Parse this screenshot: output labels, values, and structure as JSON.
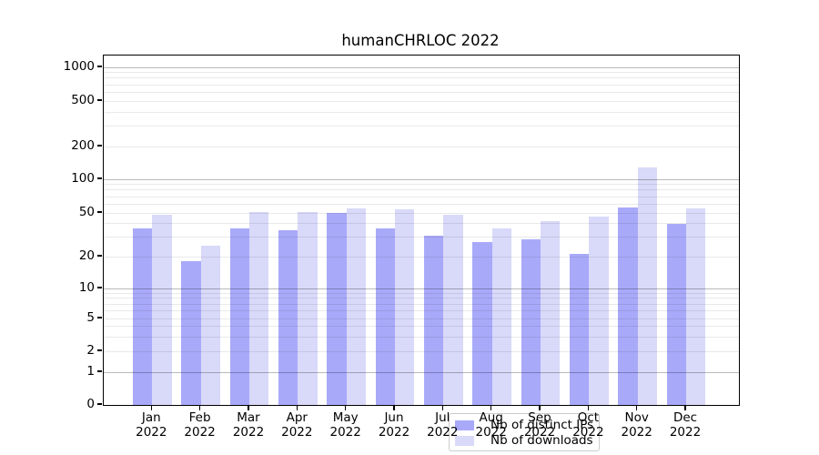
{
  "title": "humanCHRLOC 2022",
  "chart_data": {
    "type": "bar",
    "title": "humanCHRLOC 2022",
    "categories": [
      "Jan 2022",
      "Feb 2022",
      "Mar 2022",
      "Apr 2022",
      "May 2022",
      "Jun 2022",
      "Jul 2022",
      "Aug 2022",
      "Sep 2022",
      "Oct 2022",
      "Nov 2022",
      "Dec 2022"
    ],
    "x": {
      "months": [
        "Jan",
        "Feb",
        "Mar",
        "Apr",
        "May",
        "Jun",
        "Jul",
        "Aug",
        "Sep",
        "Oct",
        "Nov",
        "Dec"
      ],
      "year": "2022"
    },
    "series": [
      {
        "name": "Nb of distinct IPs",
        "color": "#a9a9fa",
        "values": [
          36,
          18,
          36,
          35,
          50,
          36,
          31,
          27,
          29,
          21,
          56,
          40
        ]
      },
      {
        "name": "Nb of downloads",
        "color": "#d9d9f9",
        "values": [
          48,
          25,
          51,
          51,
          55,
          54,
          48,
          36,
          42,
          46,
          129,
          55
        ]
      }
    ],
    "ylabel": "",
    "xlabel": "",
    "yaxis": {
      "scale": "symlog",
      "tick_labels": [
        "0",
        "1",
        "2",
        "5",
        "10",
        "20",
        "50",
        "100",
        "200",
        "500",
        "1000"
      ],
      "tick_values": [
        0,
        1,
        2,
        5,
        10,
        20,
        50,
        100,
        200,
        500,
        1000
      ],
      "major_gridline_values": [
        1,
        10,
        100,
        1000
      ],
      "ylim": [
        0,
        1200
      ]
    },
    "grid": "on",
    "legend": {
      "position": "lower center",
      "entries": [
        "Nb of distinct IPs",
        "Nb of downloads"
      ]
    }
  }
}
